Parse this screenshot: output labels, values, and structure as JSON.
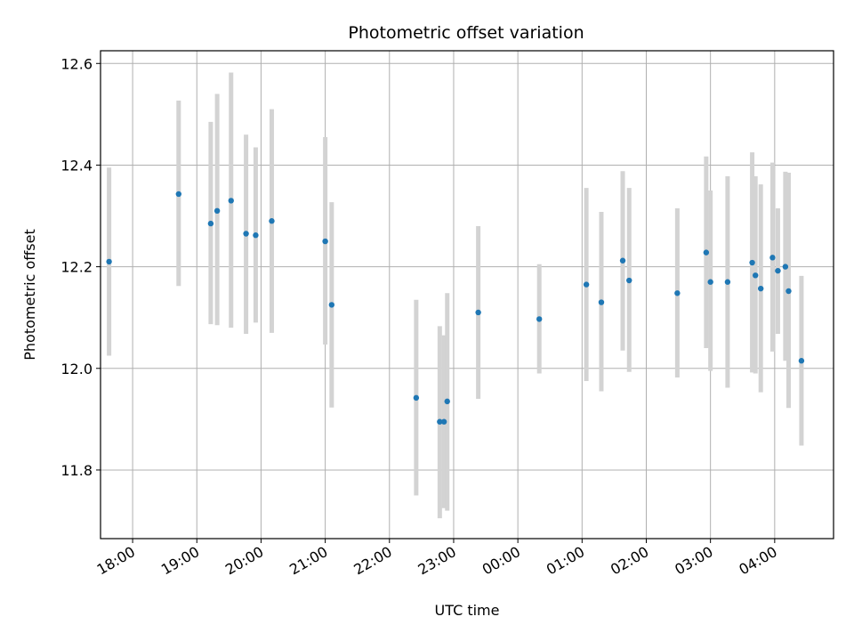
{
  "chart_data": {
    "type": "scatter",
    "title": "Photometric offset variation",
    "xlabel": "UTC time",
    "ylabel": "Photometric offset",
    "x_unit": "UTC time of day (ticks roll past midnight)",
    "xlim": [
      "17:30",
      "04:55"
    ],
    "ylim": [
      11.665,
      12.625
    ],
    "x_ticks": [
      "18:00",
      "19:00",
      "20:00",
      "21:00",
      "22:00",
      "23:00",
      "00:00",
      "01:00",
      "02:00",
      "03:00",
      "04:00"
    ],
    "y_ticks": [
      11.8,
      12.0,
      12.2,
      12.4,
      12.6
    ],
    "y_tick_labels": [
      "11.8",
      "12.0",
      "12.2",
      "12.4",
      "12.6"
    ],
    "grid": true,
    "marker_color": "#1f77b4",
    "errorbar_color": "#d3d3d3",
    "points": [
      {
        "x": "17:38",
        "y": 12.21,
        "ylo": 12.025,
        "yhi": 12.395
      },
      {
        "x": "18:43",
        "y": 12.343,
        "ylo": 12.162,
        "yhi": 12.527
      },
      {
        "x": "19:13",
        "y": 12.285,
        "ylo": 12.087,
        "yhi": 12.485
      },
      {
        "x": "19:19",
        "y": 12.31,
        "ylo": 12.085,
        "yhi": 12.54
      },
      {
        "x": "19:32",
        "y": 12.33,
        "ylo": 12.08,
        "yhi": 12.582
      },
      {
        "x": "19:46",
        "y": 12.265,
        "ylo": 12.068,
        "yhi": 12.46
      },
      {
        "x": "19:55",
        "y": 12.262,
        "ylo": 12.09,
        "yhi": 12.435
      },
      {
        "x": "20:10",
        "y": 12.29,
        "ylo": 12.07,
        "yhi": 12.51
      },
      {
        "x": "21:00",
        "y": 12.25,
        "ylo": 12.047,
        "yhi": 12.455
      },
      {
        "x": "21:06",
        "y": 12.125,
        "ylo": 11.923,
        "yhi": 12.327
      },
      {
        "x": "22:25",
        "y": 11.942,
        "ylo": 11.75,
        "yhi": 12.135
      },
      {
        "x": "22:47",
        "y": 11.895,
        "ylo": 11.705,
        "yhi": 12.083
      },
      {
        "x": "22:51",
        "y": 11.895,
        "ylo": 11.725,
        "yhi": 12.065
      },
      {
        "x": "22:54",
        "y": 11.935,
        "ylo": 11.72,
        "yhi": 12.148
      },
      {
        "x": "23:23",
        "y": 12.11,
        "ylo": 11.94,
        "yhi": 12.28
      },
      {
        "x": "00:20",
        "y": 12.097,
        "ylo": 11.99,
        "yhi": 12.205
      },
      {
        "x": "01:04",
        "y": 12.165,
        "ylo": 11.975,
        "yhi": 12.355
      },
      {
        "x": "01:18",
        "y": 12.13,
        "ylo": 11.955,
        "yhi": 12.308
      },
      {
        "x": "01:38",
        "y": 12.212,
        "ylo": 12.035,
        "yhi": 12.388
      },
      {
        "x": "01:44",
        "y": 12.173,
        "ylo": 11.993,
        "yhi": 12.355
      },
      {
        "x": "02:29",
        "y": 12.148,
        "ylo": 11.982,
        "yhi": 12.315
      },
      {
        "x": "02:56",
        "y": 12.228,
        "ylo": 12.04,
        "yhi": 12.417
      },
      {
        "x": "03:00",
        "y": 12.17,
        "ylo": 11.995,
        "yhi": 12.35
      },
      {
        "x": "03:16",
        "y": 12.17,
        "ylo": 11.962,
        "yhi": 12.378
      },
      {
        "x": "03:39",
        "y": 12.208,
        "ylo": 11.992,
        "yhi": 12.425
      },
      {
        "x": "03:42",
        "y": 12.183,
        "ylo": 11.99,
        "yhi": 12.378
      },
      {
        "x": "03:47",
        "y": 12.157,
        "ylo": 11.953,
        "yhi": 12.362
      },
      {
        "x": "03:58",
        "y": 12.218,
        "ylo": 12.033,
        "yhi": 12.405
      },
      {
        "x": "04:03",
        "y": 12.192,
        "ylo": 12.068,
        "yhi": 12.315
      },
      {
        "x": "04:10",
        "y": 12.2,
        "ylo": 12.015,
        "yhi": 12.387
      },
      {
        "x": "04:13",
        "y": 12.152,
        "ylo": 11.922,
        "yhi": 12.385
      },
      {
        "x": "04:25",
        "y": 12.015,
        "ylo": 11.848,
        "yhi": 12.182
      }
    ]
  }
}
